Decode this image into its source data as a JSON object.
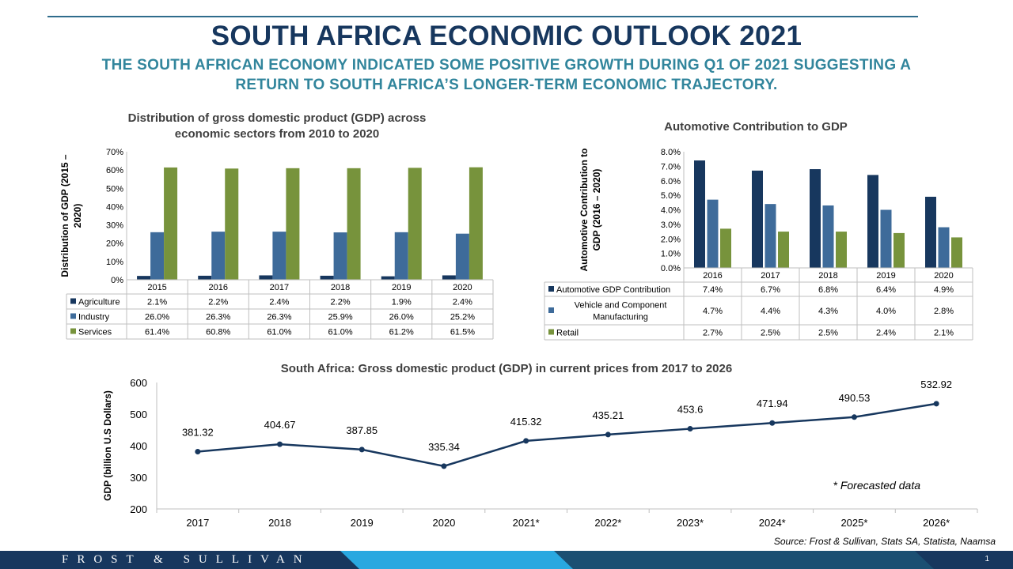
{
  "header": {
    "title": "SOUTH AFRICA ECONOMIC OUTLOOK 2021",
    "subtitle_line1": "THE SOUTH AFRICAN ECONOMY INDICATED SOME POSITIVE GROWTH DURING Q1 OF 2021 SUGGESTING A",
    "subtitle_line2": "RETURN TO SOUTH AFRICA’S LONGER-TERM ECONOMIC TRAJECTORY."
  },
  "chart_data": [
    {
      "type": "bar",
      "title": [
        "Distribution of gross domestic product (GDP) across",
        "economic sectors from 2010 to 2020"
      ],
      "ylabel": [
        "Distribution of GDP (2015 –",
        "2020)"
      ],
      "ylim": [
        0,
        70
      ],
      "yticks": [
        "0%",
        "10%",
        "20%",
        "30%",
        "40%",
        "50%",
        "60%",
        "70%"
      ],
      "categories": [
        "2015",
        "2016",
        "2017",
        "2018",
        "2019",
        "2020"
      ],
      "series": [
        {
          "name": "Agriculture",
          "color": "#17375e",
          "values": [
            2.1,
            2.2,
            2.4,
            2.2,
            1.9,
            2.4
          ],
          "labels": [
            "2.1%",
            "2.2%",
            "2.4%",
            "2.2%",
            "1.9%",
            "2.4%"
          ]
        },
        {
          "name": "Industry",
          "color": "#3e6b9a",
          "values": [
            26.0,
            26.3,
            26.3,
            25.9,
            26.0,
            25.2
          ],
          "labels": [
            "26.0%",
            "26.3%",
            "26.3%",
            "25.9%",
            "26.0%",
            "25.2%"
          ]
        },
        {
          "name": "Services",
          "color": "#77933c",
          "values": [
            61.4,
            60.8,
            61.0,
            61.0,
            61.2,
            61.5
          ],
          "labels": [
            "61.4%",
            "60.8%",
            "61.0%",
            "61.0%",
            "61.2%",
            "61.5%"
          ]
        }
      ],
      "data_table": true
    },
    {
      "type": "bar",
      "title": [
        "Automotive Contribution to GDP"
      ],
      "ylabel": [
        "Automotive Contribution to",
        "GDP (2016 – 2020)"
      ],
      "ylim": [
        0,
        8
      ],
      "yticks": [
        "0.0%",
        "1.0%",
        "2.0%",
        "3.0%",
        "4.0%",
        "5.0%",
        "6.0%",
        "7.0%",
        "8.0%"
      ],
      "categories": [
        "2016",
        "2017",
        "2018",
        "2019",
        "2020"
      ],
      "series": [
        {
          "name": [
            "Automotive GDP Contribution"
          ],
          "color": "#17375e",
          "values": [
            7.4,
            6.7,
            6.8,
            6.4,
            4.9
          ],
          "labels": [
            "7.4%",
            "6.7%",
            "6.8%",
            "6.4%",
            "4.9%"
          ]
        },
        {
          "name": [
            "Vehicle and Component",
            "Manufacturing"
          ],
          "color": "#3e6b9a",
          "values": [
            4.7,
            4.4,
            4.3,
            4.0,
            2.8
          ],
          "labels": [
            "4.7%",
            "4.4%",
            "4.3%",
            "4.0%",
            "2.8%"
          ]
        },
        {
          "name": [
            "Retail"
          ],
          "color": "#77933c",
          "values": [
            2.7,
            2.5,
            2.5,
            2.4,
            2.1
          ],
          "labels": [
            "2.7%",
            "2.5%",
            "2.5%",
            "2.4%",
            "2.1%"
          ]
        }
      ],
      "data_table": true
    },
    {
      "type": "line",
      "title": [
        "South Africa: Gross domestic product (GDP) in current prices from 2017 to 2026"
      ],
      "ylabel": [
        "GDP (billion U.S Dollars)"
      ],
      "ylim": [
        200,
        600
      ],
      "yticks": [
        "200",
        "300",
        "400",
        "500",
        "600"
      ],
      "categories": [
        "2017",
        "2018",
        "2019",
        "2020",
        "2021*",
        "2022*",
        "2023*",
        "2024*",
        "2025*",
        "2026*"
      ],
      "series": [
        {
          "name": "",
          "color": "#17375e",
          "values": [
            381.32,
            404.67,
            387.85,
            335.34,
            415.32,
            435.21,
            453.6,
            471.94,
            490.53,
            532.92
          ],
          "labels": [
            "381.32",
            "404.67",
            "387.85",
            "335.34",
            "415.32",
            "435.21",
            "453.6",
            "471.94",
            "490.53",
            "532.92"
          ]
        }
      ],
      "annotation": "* Forecasted data"
    }
  ],
  "footer": {
    "brand": "FROST & SULLIVAN",
    "page": "1",
    "source": "Source: Frost & Sullivan, Stats SA, Statista, Naamsa"
  }
}
